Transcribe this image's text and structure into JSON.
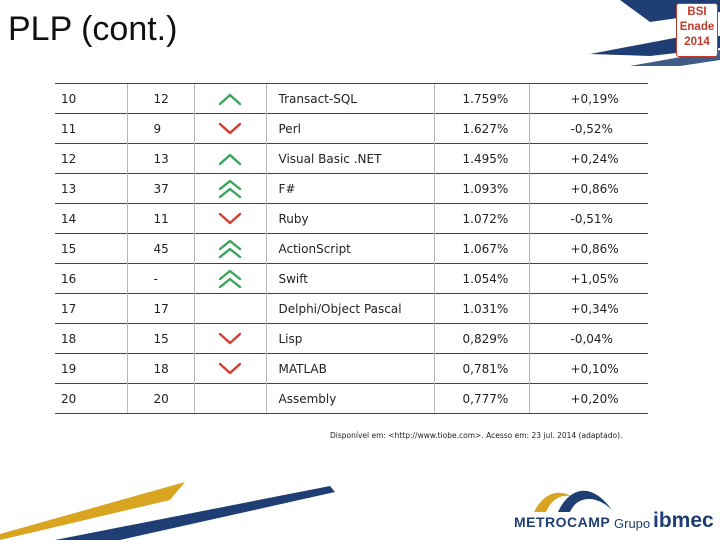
{
  "slide": {
    "title": "PLP (cont.)",
    "badge": {
      "line1": "BSI",
      "line2": "Enade",
      "line3": "2014"
    }
  },
  "table": {
    "rows": [
      {
        "rank": "10",
        "prev": "12",
        "trend": "up",
        "language": "Transact-SQL",
        "share": "1.759%",
        "change": "+0,19%"
      },
      {
        "rank": "11",
        "prev": "9",
        "trend": "down",
        "language": "Perl",
        "share": "1.627%",
        "change": "-0,52%"
      },
      {
        "rank": "12",
        "prev": "13",
        "trend": "up",
        "language": "Visual Basic .NET",
        "share": "1.495%",
        "change": "+0,24%"
      },
      {
        "rank": "13",
        "prev": "37",
        "trend": "up-double",
        "language": "F#",
        "share": "1.093%",
        "change": "+0,86%"
      },
      {
        "rank": "14",
        "prev": "11",
        "trend": "down",
        "language": "Ruby",
        "share": "1.072%",
        "change": "-0,51%"
      },
      {
        "rank": "15",
        "prev": "45",
        "trend": "up-double",
        "language": "ActionScript",
        "share": "1.067%",
        "change": "+0,86%"
      },
      {
        "rank": "16",
        "prev": "-",
        "trend": "up-double",
        "language": "Swift",
        "share": "1.054%",
        "change": "+1,05%"
      },
      {
        "rank": "17",
        "prev": "17",
        "trend": "none",
        "language": "Delphi/Object Pascal",
        "share": "1.031%",
        "change": "+0,34%"
      },
      {
        "rank": "18",
        "prev": "15",
        "trend": "down",
        "language": "Lisp",
        "share": "0,829%",
        "change": "-0,04%"
      },
      {
        "rank": "19",
        "prev": "18",
        "trend": "down",
        "language": "MATLAB",
        "share": "0,781%",
        "change": "+0,10%"
      },
      {
        "rank": "20",
        "prev": "20",
        "trend": "none",
        "language": "Assembly",
        "share": "0,777%",
        "change": "+0,20%"
      }
    ],
    "source": "Disponível em: <http://www.tiobe.com>. Acesso em: 23 jul. 2014 (adaptado)."
  },
  "footer": {
    "logo_name": "METROCAMP",
    "group_label": "Grupo",
    "group_name": "ibmec"
  },
  "colors": {
    "up": "#3aa55a",
    "down": "#d93a2b",
    "navy": "#1f3e73",
    "gold": "#d9a520"
  }
}
